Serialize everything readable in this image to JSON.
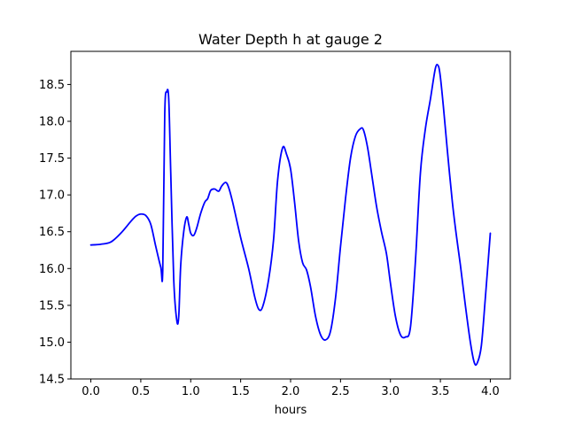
{
  "chart_data": {
    "type": "line",
    "title": "Water Depth h at gauge 2",
    "xlabel": "hours",
    "ylabel": "",
    "xlim": [
      -0.2,
      4.2
    ],
    "ylim": [
      14.5,
      18.95
    ],
    "xticks": [
      "0.0",
      "0.5",
      "1.0",
      "1.5",
      "2.0",
      "2.5",
      "3.0",
      "3.5",
      "4.0"
    ],
    "yticks": [
      "14.5",
      "15.0",
      "15.5",
      "16.0",
      "16.5",
      "17.0",
      "17.5",
      "18.0",
      "18.5"
    ],
    "grid": false,
    "legend": "none",
    "series": [
      {
        "color": "#0000ff",
        "x": [
          0.0,
          0.1,
          0.2,
          0.3,
          0.4,
          0.45,
          0.5,
          0.55,
          0.6,
          0.65,
          0.7,
          0.72,
          0.74,
          0.76,
          0.78,
          0.8,
          0.83,
          0.86,
          0.88,
          0.9,
          0.93,
          0.96,
          0.98,
          1.0,
          1.03,
          1.06,
          1.1,
          1.14,
          1.17,
          1.2,
          1.24,
          1.28,
          1.31,
          1.35,
          1.38,
          1.42,
          1.5,
          1.58,
          1.64,
          1.68,
          1.72,
          1.78,
          1.83,
          1.87,
          1.92,
          1.96,
          2.0,
          2.04,
          2.08,
          2.12,
          2.16,
          2.2,
          2.25,
          2.3,
          2.35,
          2.4,
          2.45,
          2.5,
          2.55,
          2.6,
          2.65,
          2.7,
          2.73,
          2.77,
          2.81,
          2.86,
          2.91,
          2.96,
          3.0,
          3.05,
          3.1,
          3.15,
          3.2,
          3.25,
          3.3,
          3.35,
          3.4,
          3.45,
          3.48,
          3.5,
          3.53,
          3.57,
          3.62,
          3.66,
          3.7,
          3.75,
          3.8,
          3.84,
          3.87,
          3.91,
          3.95,
          4.0
        ],
        "y": [
          16.32,
          16.33,
          16.36,
          16.48,
          16.64,
          16.71,
          16.74,
          16.72,
          16.6,
          16.3,
          16.02,
          15.98,
          18.1,
          18.4,
          18.3,
          17.3,
          15.85,
          15.3,
          15.35,
          16.05,
          16.5,
          16.7,
          16.6,
          16.48,
          16.45,
          16.55,
          16.75,
          16.9,
          16.95,
          17.06,
          17.08,
          17.05,
          17.12,
          17.17,
          17.1,
          16.9,
          16.42,
          16.0,
          15.62,
          15.45,
          15.48,
          15.85,
          16.4,
          17.2,
          17.64,
          17.55,
          17.35,
          16.9,
          16.38,
          16.08,
          15.98,
          15.75,
          15.35,
          15.1,
          15.03,
          15.15,
          15.6,
          16.3,
          16.95,
          17.5,
          17.8,
          17.9,
          17.88,
          17.65,
          17.3,
          16.85,
          16.5,
          16.2,
          15.8,
          15.35,
          15.1,
          15.07,
          15.2,
          16.1,
          17.3,
          17.9,
          18.3,
          18.72,
          18.75,
          18.6,
          18.2,
          17.6,
          16.9,
          16.45,
          16.05,
          15.5,
          15.0,
          14.72,
          14.72,
          14.95,
          15.6,
          16.48
        ]
      }
    ]
  }
}
